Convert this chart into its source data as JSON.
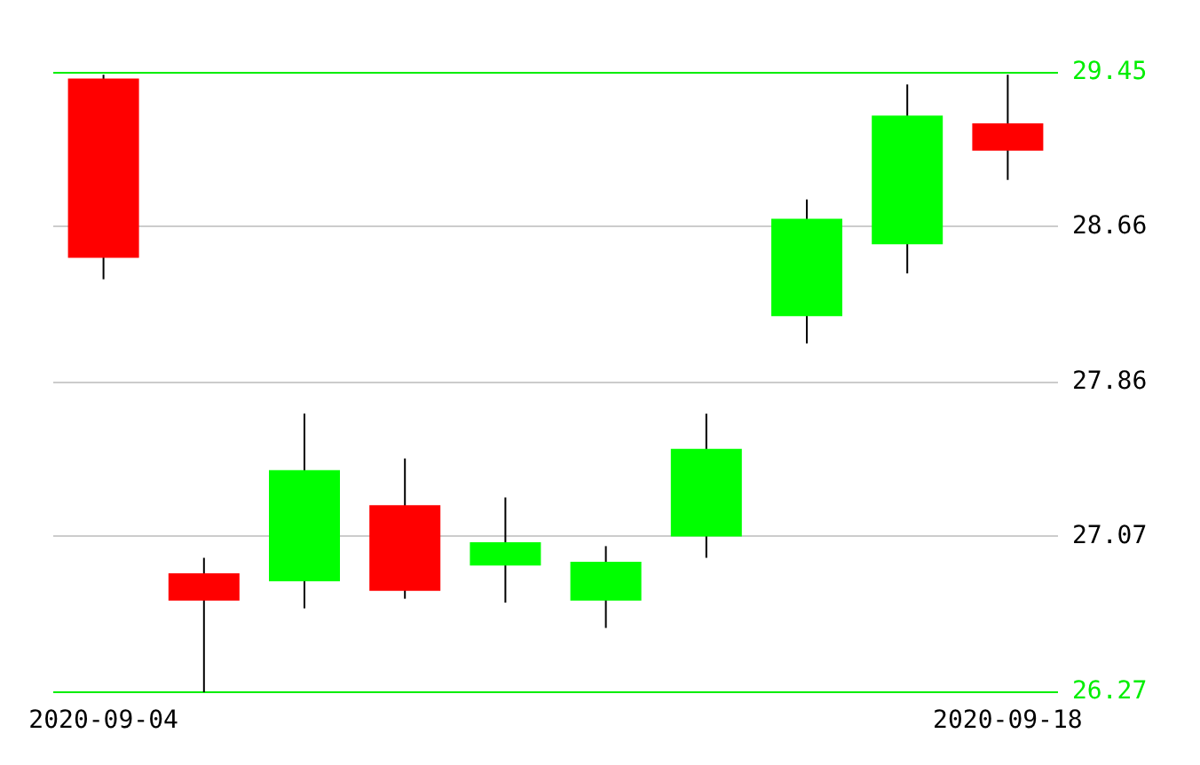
{
  "chart_data": {
    "type": "candlestick",
    "categories": [
      "2020-09-04",
      null,
      null,
      null,
      null,
      null,
      null,
      null,
      null,
      "2020-09-18"
    ],
    "ohlc": [
      [
        29.42,
        29.44,
        28.39,
        28.5
      ],
      [
        26.88,
        26.96,
        26.27,
        26.74
      ],
      [
        26.84,
        27.7,
        26.7,
        27.41
      ],
      [
        27.23,
        27.47,
        26.75,
        26.79
      ],
      [
        26.92,
        27.27,
        26.73,
        27.04
      ],
      [
        26.74,
        27.02,
        26.6,
        26.94
      ],
      [
        27.07,
        27.7,
        26.96,
        27.52
      ],
      [
        28.2,
        28.8,
        28.06,
        28.7
      ],
      [
        28.57,
        29.39,
        28.42,
        29.23
      ],
      [
        29.19,
        29.44,
        28.9,
        29.05
      ]
    ],
    "colors": [
      "#ff0000",
      "#ff0000",
      "#00ff00",
      "#ff0000",
      "#00ff00",
      "#00ff00",
      "#00ff00",
      "#00ff00",
      "#00ff00",
      "#ff0000"
    ],
    "ylim": [
      26.27,
      29.45
    ],
    "yticks": [
      26.27,
      27.07,
      27.86,
      28.66,
      29.45
    ],
    "grid": "y"
  }
}
